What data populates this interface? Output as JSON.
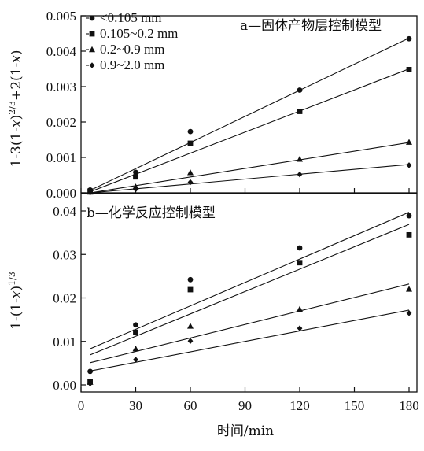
{
  "chart_data": [
    {
      "type": "scatter",
      "panel": "a",
      "title": "a—固体产物层控制模型",
      "ylabel": "1-3(1-x)^(2/3)+2(1-x)",
      "ylabel_parts": [
        "1-3(1-",
        "x",
        ")",
        "2/3",
        "+2(1-",
        "x",
        ")"
      ],
      "xlim": [
        0,
        185
      ],
      "ylim": [
        0,
        0.005
      ],
      "yticks": [
        "0.000",
        "0.001",
        "0.002",
        "0.003",
        "0.004",
        "0.005"
      ],
      "legend_position": "top-left",
      "series": [
        {
          "name": "<0.105 mm",
          "marker": "circle",
          "x": [
            5,
            30,
            60,
            120,
            180
          ],
          "y": [
            8e-05,
            0.00058,
            0.00173,
            0.0029,
            0.00435
          ],
          "fit": [
            [
              5,
              7e-05
            ],
            [
              180,
              0.00437
            ]
          ]
        },
        {
          "name": "0.105~0.2 mm",
          "marker": "square",
          "x": [
            5,
            30,
            60,
            120,
            180
          ],
          "y": [
            5e-05,
            0.00045,
            0.0014,
            0.0023,
            0.00348
          ],
          "fit": [
            [
              5,
              3e-05
            ],
            [
              180,
              0.0035
            ]
          ]
        },
        {
          "name": "0.2~0.9 mm",
          "marker": "triangle",
          "x": [
            5,
            30,
            60,
            120,
            180
          ],
          "y": [
            2e-05,
            0.00017,
            0.00057,
            0.00095,
            0.00143
          ],
          "fit": [
            [
              5,
              0.0
            ],
            [
              180,
              0.00142
            ]
          ]
        },
        {
          "name": "0.9~2.0 mm",
          "marker": "diamond",
          "x": [
            5,
            30,
            60,
            120,
            180
          ],
          "y": [
            1e-05,
            0.0001,
            0.0003,
            0.00052,
            0.00078
          ],
          "fit": [
            [
              5,
              0.0
            ],
            [
              180,
              0.0008
            ]
          ]
        }
      ]
    },
    {
      "type": "scatter",
      "panel": "b",
      "title": "b—化学反应控制模型",
      "ylabel": "1-(1-x)^(1/3)",
      "ylabel_parts": [
        "1-(1-",
        "x",
        ")",
        "1/3"
      ],
      "xlabel": "时间/min",
      "xlim": [
        0,
        185
      ],
      "ylim": [
        -0.002,
        0.04
      ],
      "xticks": [
        "0",
        "30",
        "60",
        "90",
        "120",
        "150",
        "180"
      ],
      "yticks": [
        "0.00",
        "0.01",
        "0.02",
        "0.03",
        "0.04"
      ],
      "series": [
        {
          "name": "<0.105 mm",
          "marker": "circle",
          "x": [
            5,
            30,
            60,
            120,
            180
          ],
          "y": [
            0.0031,
            0.0138,
            0.0242,
            0.0315,
            0.0389
          ],
          "fit": [
            [
              5,
              0.0083
            ],
            [
              180,
              0.0397
            ]
          ]
        },
        {
          "name": "0.105~0.2 mm",
          "marker": "square",
          "x": [
            5,
            30,
            60,
            120,
            180
          ],
          "y": [
            0.0007,
            0.0121,
            0.0219,
            0.0281,
            0.0345
          ],
          "fit": [
            [
              5,
              0.0069
            ],
            [
              180,
              0.0369
            ]
          ]
        },
        {
          "name": "0.2~0.9 mm",
          "marker": "triangle",
          "x": [
            5,
            30,
            60,
            120,
            180
          ],
          "y": [
            0.0006,
            0.0083,
            0.0135,
            0.0174,
            0.022
          ],
          "fit": [
            [
              5,
              0.0051
            ],
            [
              180,
              0.0232
            ]
          ]
        },
        {
          "name": "0.9~2.0 mm",
          "marker": "diamond",
          "x": [
            5,
            30,
            60,
            120,
            180
          ],
          "y": [
            0.0003,
            0.0058,
            0.0101,
            0.013,
            0.0165
          ],
          "fit": [
            [
              5,
              0.0032
            ],
            [
              180,
              0.0172
            ]
          ]
        }
      ]
    }
  ],
  "legend": {
    "entries": [
      {
        "marker": "circle",
        "label": "<0.105 mm"
      },
      {
        "marker": "square",
        "label": "0.105~0.2 mm"
      },
      {
        "marker": "triangle",
        "label": "0.2~0.9 mm"
      },
      {
        "marker": "diamond",
        "label": "0.9~2.0 mm"
      }
    ]
  },
  "colors": {
    "ink": "#111111",
    "background": "#ffffff"
  }
}
